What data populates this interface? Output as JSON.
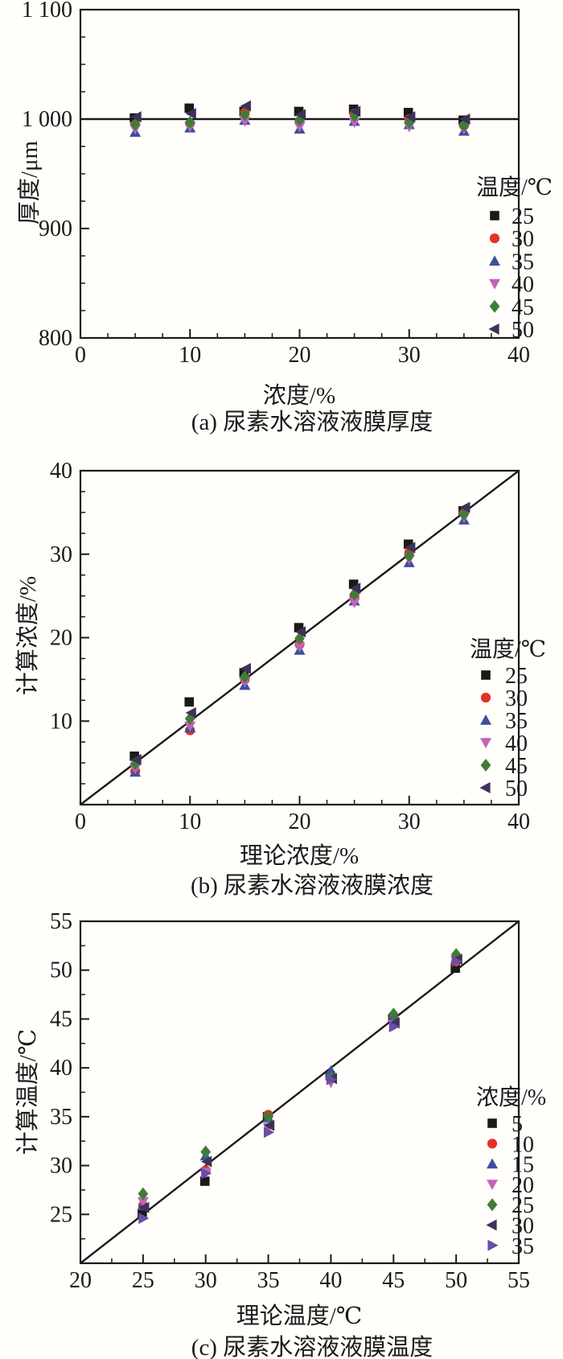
{
  "page": {
    "background": "#fffefa",
    "ink": "#1a1a1a"
  },
  "palette": {
    "black": "#1a1a1a",
    "red": "#e23228",
    "blue": "#3b4f9e",
    "magenta": "#c263b8",
    "green": "#3f7d37",
    "dark_purple": "#3f3158",
    "purple": "#6a4da6"
  },
  "chart_data": [
    {
      "id": "a",
      "type": "scatter",
      "caption": "(a) 尿素水溶液液膜厚度",
      "xlabel": "浓度/%",
      "ylabel": "厚度/μm",
      "xlim": [
        0,
        40
      ],
      "ylim": [
        800,
        1100
      ],
      "xticks": [
        0,
        10,
        20,
        30,
        40
      ],
      "xtick_labels": [
        "0",
        "10",
        "20",
        "30",
        "40"
      ],
      "yticks": [
        800,
        900,
        1000,
        1100
      ],
      "ytick_labels": [
        "800",
        "900",
        "1 000",
        "1 100"
      ],
      "x_minor_step": 2.5,
      "y_minor_step": 25,
      "grid": false,
      "reference_line": {
        "type": "horizontal",
        "y": 1000
      },
      "legend": {
        "title": "温度/℃",
        "position": "right-lower"
      },
      "x": [
        5,
        10,
        15,
        20,
        25,
        30,
        35
      ],
      "series": [
        {
          "name": "25",
          "marker": "square",
          "color": "#1a1a1a",
          "values": [
            1001,
            1010,
            1007,
            1007,
            1009,
            1006,
            999
          ]
        },
        {
          "name": "30",
          "marker": "circle",
          "color": "#e23228",
          "values": [
            995,
            996,
            1006,
            998,
            1005,
            1000,
            994
          ]
        },
        {
          "name": "35",
          "marker": "triangle-up",
          "color": "#3b4f9e",
          "values": [
            988,
            992,
            999,
            991,
            998,
            995,
            989
          ]
        },
        {
          "name": "40",
          "marker": "triangle-down",
          "color": "#c263b8",
          "values": [
            991,
            993,
            998,
            993,
            997,
            993,
            991
          ]
        },
        {
          "name": "45",
          "marker": "diamond",
          "color": "#3f7d37",
          "values": [
            995,
            997,
            1004,
            999,
            1003,
            997,
            994
          ]
        },
        {
          "name": "50",
          "marker": "triangle-left",
          "color": "#3f3158",
          "values": [
            1002,
            1005,
            1012,
            1004,
            1007,
            1002,
            1000
          ]
        }
      ]
    },
    {
      "id": "b",
      "type": "scatter",
      "caption": "(b) 尿素水溶液液膜浓度",
      "xlabel": "理论浓度/%",
      "ylabel": "计算浓度/%",
      "xlim": [
        0,
        40
      ],
      "ylim": [
        0,
        40
      ],
      "xticks": [
        0,
        10,
        20,
        30,
        40
      ],
      "xtick_labels": [
        "0",
        "10",
        "20",
        "30",
        "40"
      ],
      "yticks": [
        0,
        10,
        20,
        30,
        40
      ],
      "ytick_labels": [
        "",
        "10",
        "20",
        "30",
        "40"
      ],
      "x_minor_step": 2.5,
      "y_minor_step": 2.5,
      "grid": false,
      "reference_line": {
        "type": "diagonal"
      },
      "legend": {
        "title": "温度/℃",
        "position": "right-lower"
      },
      "x": [
        5,
        10,
        15,
        20,
        25,
        30,
        35
      ],
      "series": [
        {
          "name": "25",
          "marker": "square",
          "color": "#1a1a1a",
          "values": [
            5.8,
            12.3,
            15.8,
            21.2,
            26.4,
            31.2,
            35.2
          ]
        },
        {
          "name": "30",
          "marker": "circle",
          "color": "#e23228",
          "values": [
            4.0,
            8.9,
            15.0,
            19.2,
            25.0,
            30.2,
            34.9
          ]
        },
        {
          "name": "35",
          "marker": "triangle-up",
          "color": "#3b4f9e",
          "values": [
            3.9,
            9.2,
            14.3,
            18.5,
            24.4,
            29.0,
            34.1
          ]
        },
        {
          "name": "40",
          "marker": "triangle-down",
          "color": "#c263b8",
          "values": [
            4.3,
            9.4,
            14.7,
            18.9,
            24.2,
            29.4,
            34.4
          ]
        },
        {
          "name": "45",
          "marker": "diamond",
          "color": "#3f7d37",
          "values": [
            4.9,
            10.3,
            15.3,
            19.9,
            25.2,
            29.8,
            34.8
          ]
        },
        {
          "name": "50",
          "marker": "triangle-left",
          "color": "#3f3158",
          "values": [
            5.4,
            11.0,
            16.3,
            20.7,
            25.9,
            30.8,
            35.6
          ]
        }
      ]
    },
    {
      "id": "c",
      "type": "scatter",
      "caption": "(c) 尿素水溶液液膜温度",
      "xlabel": "理论温度/℃",
      "ylabel": "计算温度/℃",
      "xlim": [
        20,
        55
      ],
      "ylim": [
        20,
        55
      ],
      "xticks": [
        20,
        25,
        30,
        35,
        40,
        45,
        50,
        55
      ],
      "xtick_labels": [
        "20",
        "25",
        "30",
        "35",
        "40",
        "45",
        "50",
        "55"
      ],
      "yticks": [
        25,
        30,
        35,
        40,
        45,
        50,
        55
      ],
      "ytick_labels": [
        "25",
        "30",
        "35",
        "40",
        "45",
        "50",
        "55"
      ],
      "x_minor_step": 2.5,
      "y_minor_step": 2.5,
      "grid": false,
      "reference_line": {
        "type": "diagonal"
      },
      "legend": {
        "title": "浓度/%",
        "position": "right-lower"
      },
      "x": [
        25,
        30,
        35,
        40,
        45,
        50
      ],
      "series": [
        {
          "name": "5",
          "marker": "square",
          "color": "#1a1a1a",
          "values": [
            25.1,
            28.4,
            35.0,
            39.2,
            45.0,
            50.2
          ]
        },
        {
          "name": "10",
          "marker": "circle",
          "color": "#e23228",
          "values": [
            25.9,
            29.5,
            35.2,
            39.3,
            45.1,
            50.9
          ]
        },
        {
          "name": "15",
          "marker": "triangle-up",
          "color": "#3b4f9e",
          "values": [
            25.9,
            31.0,
            34.9,
            39.7,
            45.3,
            51.2
          ]
        },
        {
          "name": "20",
          "marker": "triangle-down",
          "color": "#c263b8",
          "values": [
            26.3,
            29.3,
            33.9,
            38.5,
            44.4,
            51.0
          ]
        },
        {
          "name": "25",
          "marker": "diamond",
          "color": "#3f7d37",
          "values": [
            27.1,
            31.4,
            35.0,
            39.0,
            45.5,
            51.6
          ]
        },
        {
          "name": "30",
          "marker": "triangle-left",
          "color": "#3f3158",
          "values": [
            25.7,
            30.4,
            34.1,
            38.9,
            44.6,
            51.1
          ]
        },
        {
          "name": "35",
          "marker": "triangle-right",
          "color": "#6a4da6",
          "values": [
            24.6,
            29.2,
            33.4,
            38.8,
            44.2,
            50.9
          ]
        }
      ]
    }
  ]
}
